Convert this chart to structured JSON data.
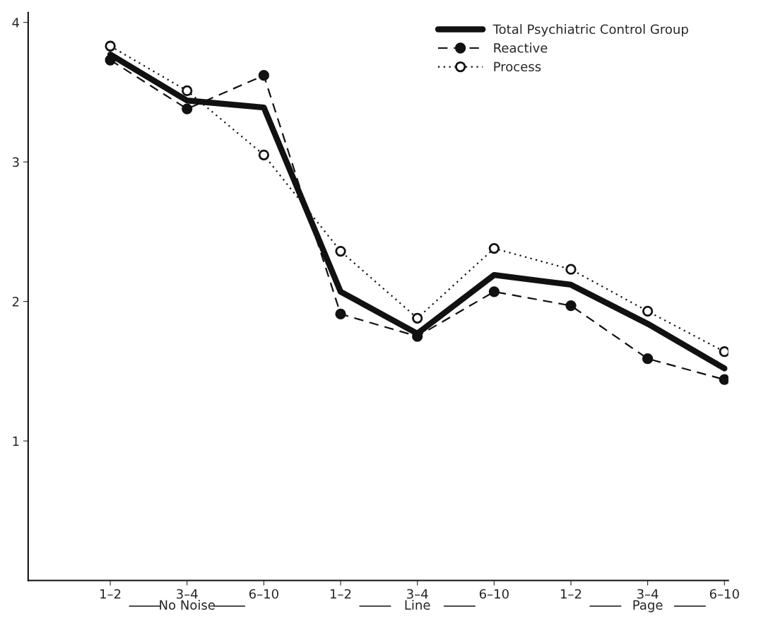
{
  "chart_data": {
    "type": "line",
    "categories": [
      "1–2",
      "3–4",
      "6–10",
      "1–2",
      "3–4",
      "6–10",
      "1–2",
      "3–4",
      "6–10"
    ],
    "series": [
      {
        "name": "Total Psychiatric Control Group",
        "color": "#111111",
        "line_style": "solid",
        "marker": "none",
        "values": [
          3.77,
          3.44,
          3.39,
          2.07,
          1.77,
          2.19,
          2.12,
          1.84,
          1.52
        ]
      },
      {
        "name": "Reactive",
        "color": "#111111",
        "line_style": "dashed",
        "marker": "circle",
        "values": [
          3.73,
          3.38,
          3.62,
          1.91,
          1.75,
          2.07,
          1.97,
          1.59,
          1.44
        ]
      },
      {
        "name": "Process",
        "color": "#111111",
        "line_style": "dotted",
        "marker": "circle",
        "values": [
          3.83,
          3.51,
          3.05,
          2.36,
          1.88,
          2.38,
          2.23,
          1.93,
          1.64
        ]
      }
    ],
    "annotations": [
      "No Noise",
      "Line",
      "Page"
    ],
    "ylim": [
      0,
      4.07
    ],
    "yticks": [
      1,
      2,
      3,
      4
    ],
    "legend": "top right",
    "grid": false
  }
}
